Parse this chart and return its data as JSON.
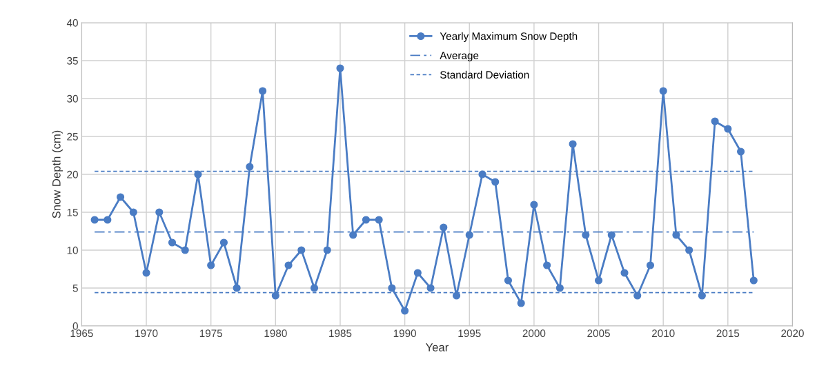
{
  "chart_data": {
    "type": "line",
    "xlabel": "Year",
    "ylabel": "Snow Depth (cm)",
    "xlim": [
      1965,
      2020
    ],
    "xticks": [
      1965,
      1970,
      1975,
      1980,
      1985,
      1990,
      1995,
      2000,
      2005,
      2010,
      2015,
      2020
    ],
    "ylim": [
      0,
      40
    ],
    "yticks": [
      0,
      5,
      10,
      15,
      20,
      25,
      30,
      35,
      40
    ],
    "grid": true,
    "legend": "top",
    "series": [
      {
        "name": "Yearly Maximum Snow Depth",
        "color": "#4a7cc4",
        "marker": "circle",
        "line_style": "solid",
        "x": [
          1966,
          1967,
          1968,
          1969,
          1970,
          1971,
          1972,
          1973,
          1974,
          1975,
          1976,
          1977,
          1978,
          1979,
          1980,
          1981,
          1982,
          1983,
          1984,
          1985,
          1986,
          1987,
          1988,
          1989,
          1990,
          1991,
          1992,
          1993,
          1994,
          1995,
          1996,
          1997,
          1998,
          1999,
          2000,
          2001,
          2002,
          2003,
          2004,
          2005,
          2006,
          2007,
          2008,
          2009,
          2010,
          2011,
          2012,
          2013,
          2014,
          2015,
          2016,
          2017
        ],
        "values": [
          14,
          14,
          17,
          15,
          7,
          15,
          11,
          10,
          20,
          8,
          11,
          5,
          21,
          31,
          4,
          8,
          10,
          5,
          10,
          34,
          12,
          14,
          14,
          5,
          2,
          7,
          5,
          13,
          4,
          12,
          20,
          19,
          6,
          3,
          16,
          8,
          5,
          24,
          12,
          6,
          12,
          7,
          4,
          8,
          31,
          12,
          10,
          4,
          27,
          26,
          23,
          6
        ]
      },
      {
        "name": "Average",
        "color": "#4a7cc4",
        "marker": "none",
        "line_style": "dashdot",
        "x": [
          1966,
          2017
        ],
        "values": [
          12.4,
          12.4
        ]
      },
      {
        "name": "Standard Deviation",
        "color": "#4a7cc4",
        "marker": "none",
        "line_style": "dashed",
        "x": [
          1966,
          2017
        ],
        "values": [
          20.4,
          20.4
        ]
      },
      {
        "color": "#4a7cc4",
        "marker": "none",
        "line_style": "dashed",
        "x": [
          1966,
          2017
        ],
        "values": [
          4.4,
          4.4
        ]
      }
    ]
  }
}
